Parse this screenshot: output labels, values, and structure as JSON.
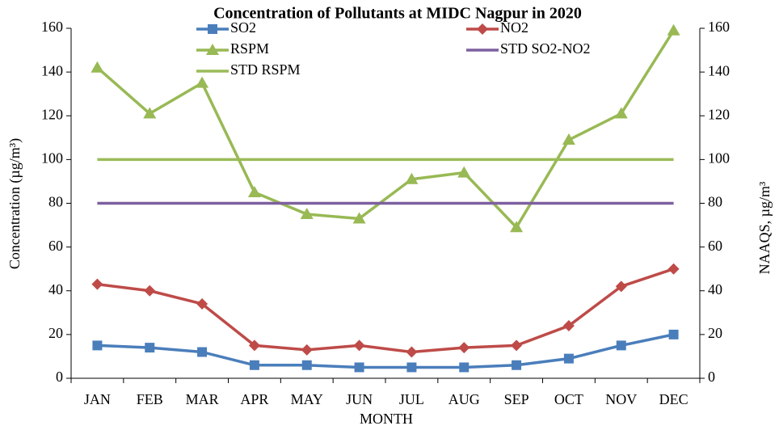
{
  "chart_data": {
    "type": "line",
    "title": "Concentration of Pollutants at MIDC Nagpur in 2020",
    "x_label": "MONTH",
    "y_label": "Concentration (µg/m³)",
    "y2_label": "NAAQS, µg/m³",
    "categories": [
      "JAN",
      "FEB",
      "MAR",
      "APR",
      "MAY",
      "JUN",
      "JUL",
      "AUG",
      "SEP",
      "OCT",
      "NOV",
      "DEC"
    ],
    "series": [
      {
        "name": "SO2",
        "color": "#4a7ebb",
        "marker": "square",
        "values": [
          15,
          14,
          12,
          6,
          6,
          5,
          5,
          5,
          6,
          9,
          15,
          20
        ]
      },
      {
        "name": "NO2",
        "color": "#be4b48",
        "marker": "diamond",
        "values": [
          43,
          40,
          34,
          15,
          13,
          15,
          12,
          14,
          15,
          24,
          42,
          50
        ]
      },
      {
        "name": "RSPM",
        "color": "#98b954",
        "marker": "triangle",
        "values": [
          142,
          121,
          135,
          85,
          75,
          73,
          91,
          94,
          69,
          109,
          121,
          159
        ]
      },
      {
        "name": "STD SO2-NO2",
        "color": "#7d60a0",
        "values": [
          80,
          80,
          80,
          80,
          80,
          80,
          80,
          80,
          80,
          80,
          80,
          80
        ]
      },
      {
        "name": "STD RSPM",
        "color": "#9bbb59",
        "values": [
          100,
          100,
          100,
          100,
          100,
          100,
          100,
          100,
          100,
          100,
          100,
          100
        ]
      }
    ],
    "ylim": [
      0,
      160
    ],
    "yticks": [
      0,
      20,
      40,
      60,
      80,
      100,
      120,
      140,
      160
    ],
    "y2lim": [
      0,
      160
    ],
    "y2ticks": [
      0,
      20,
      40,
      60,
      80,
      100,
      120,
      140,
      160
    ],
    "grid": false,
    "legend": "top"
  }
}
